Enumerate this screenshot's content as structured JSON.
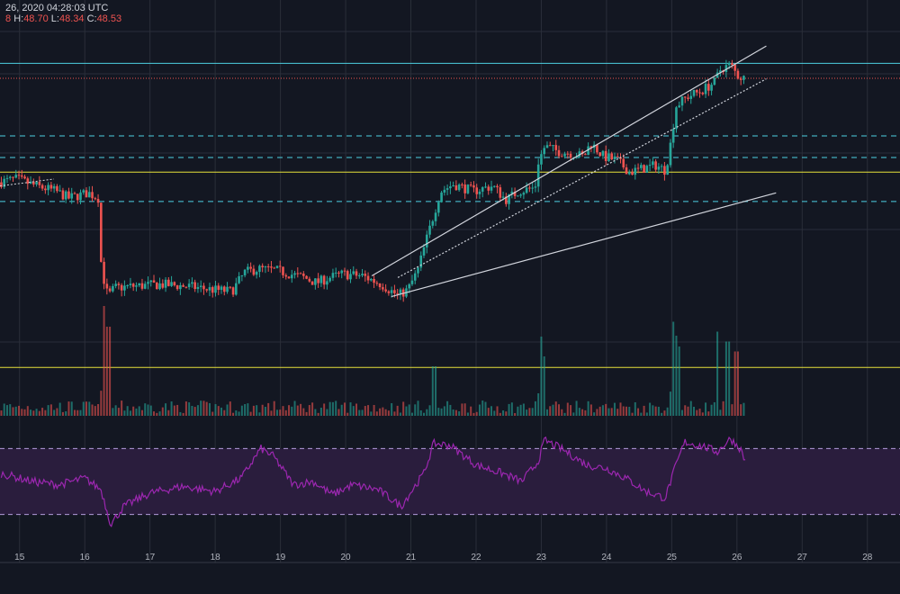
{
  "header": {
    "date_text": "26, 2020 04:28:03 UTC",
    "open_fragment": "8",
    "high_label": "H:",
    "high_value": "48.70",
    "low_label": "L:",
    "low_value": "48.34",
    "close_label": "C:",
    "close_value": "48.53"
  },
  "colors": {
    "background": "#131722",
    "grid": "#2a2e39",
    "up": "#26a69a",
    "down": "#ef5350",
    "cyan_line": "#4dd0e1",
    "yellow_line": "#e6e13a",
    "trend_line": "#d1d4dc",
    "rsi_line": "#9c27b0",
    "rsi_band": "#2a1d3d",
    "price_line": "#ef5350"
  },
  "chart_data": {
    "type": "candlestick",
    "x_axis": {
      "unit": "day",
      "range": [
        14.7,
        28.5
      ],
      "ticks": [
        "15",
        "16",
        "17",
        "18",
        "19",
        "20",
        "21",
        "22",
        "23",
        "24",
        "25",
        "26",
        "27",
        "28"
      ]
    },
    "price_range": [
      29,
      51.5
    ],
    "horizontal_levels": [
      {
        "kind": "solid",
        "color": "cyan",
        "price": 49.4
      },
      {
        "kind": "dotted",
        "color": "red",
        "price": 48.53
      },
      {
        "kind": "dashed",
        "color": "cyan",
        "price": 45.2
      },
      {
        "kind": "dashed",
        "color": "cyan",
        "price": 43.95
      },
      {
        "kind": "solid",
        "color": "yellow",
        "price": 43.1
      },
      {
        "kind": "dashed",
        "color": "cyan",
        "price": 41.4
      },
      {
        "kind": "solid",
        "color": "yellow",
        "price": 31.8
      }
    ],
    "trend_lines": [
      {
        "style": "solid",
        "from": [
          20.4,
          37.1
        ],
        "to": [
          26.45,
          50.4
        ]
      },
      {
        "style": "solid",
        "from": [
          20.7,
          35.9
        ],
        "to": [
          26.6,
          41.9
        ]
      },
      {
        "style": "dotted",
        "from": [
          20.8,
          37.0
        ],
        "to": [
          26.45,
          48.5
        ]
      }
    ],
    "price_anchors": [
      [
        14.7,
        42.5
      ],
      [
        15.0,
        42.7
      ],
      [
        15.3,
        42.3
      ],
      [
        15.6,
        42.0
      ],
      [
        15.8,
        41.6
      ],
      [
        16.1,
        41.9
      ],
      [
        16.25,
        41.6
      ],
      [
        16.3,
        37.5
      ],
      [
        16.4,
        35.9
      ],
      [
        16.5,
        36.4
      ],
      [
        16.8,
        36.5
      ],
      [
        17.2,
        36.6
      ],
      [
        17.6,
        36.5
      ],
      [
        18.0,
        36.3
      ],
      [
        18.3,
        36.2
      ],
      [
        18.5,
        37.3
      ],
      [
        18.7,
        37.5
      ],
      [
        19.0,
        37.4
      ],
      [
        19.2,
        37.2
      ],
      [
        19.4,
        37.0
      ],
      [
        19.6,
        36.7
      ],
      [
        19.8,
        37.0
      ],
      [
        20.0,
        37.2
      ],
      [
        20.3,
        37.1
      ],
      [
        20.6,
        36.6
      ],
      [
        20.85,
        35.95
      ],
      [
        21.0,
        36.3
      ],
      [
        21.15,
        37.4
      ],
      [
        21.3,
        39.4
      ],
      [
        21.5,
        42.0
      ],
      [
        21.7,
        42.4
      ],
      [
        22.0,
        42.0
      ],
      [
        22.3,
        42.3
      ],
      [
        22.5,
        41.5
      ],
      [
        22.7,
        42.0
      ],
      [
        22.95,
        42.2
      ],
      [
        23.0,
        43.7
      ],
      [
        23.1,
        44.6
      ],
      [
        23.3,
        44.3
      ],
      [
        23.5,
        44.2
      ],
      [
        23.7,
        44.0
      ],
      [
        23.8,
        44.8
      ],
      [
        24.0,
        44.0
      ],
      [
        24.2,
        43.8
      ],
      [
        24.4,
        43.1
      ],
      [
        24.6,
        43.3
      ],
      [
        24.8,
        43.5
      ],
      [
        24.95,
        43.2
      ],
      [
        25.05,
        45.2
      ],
      [
        25.1,
        46.9
      ],
      [
        25.3,
        47.5
      ],
      [
        25.5,
        47.8
      ],
      [
        25.7,
        48.3
      ],
      [
        25.8,
        49.1
      ],
      [
        25.95,
        49.3
      ],
      [
        26.05,
        48.7
      ],
      [
        26.15,
        48.53
      ]
    ],
    "rsi": {
      "upper_level": 70,
      "lower_level": 30,
      "range": [
        20,
        80
      ],
      "anchors": [
        [
          14.7,
          55
        ],
        [
          15.2,
          50
        ],
        [
          15.6,
          48
        ],
        [
          16.0,
          52
        ],
        [
          16.25,
          45
        ],
        [
          16.4,
          24
        ],
        [
          16.6,
          35
        ],
        [
          17.0,
          43
        ],
        [
          17.5,
          47
        ],
        [
          18.0,
          44
        ],
        [
          18.4,
          52
        ],
        [
          18.7,
          70
        ],
        [
          18.9,
          65
        ],
        [
          19.2,
          48
        ],
        [
          19.5,
          50
        ],
        [
          19.8,
          42
        ],
        [
          20.1,
          48
        ],
        [
          20.5,
          45
        ],
        [
          20.85,
          35
        ],
        [
          21.2,
          55
        ],
        [
          21.35,
          73
        ],
        [
          21.6,
          72
        ],
        [
          22.0,
          60
        ],
        [
          22.4,
          55
        ],
        [
          22.7,
          50
        ],
        [
          22.95,
          62
        ],
        [
          23.05,
          75
        ],
        [
          23.3,
          70
        ],
        [
          23.7,
          60
        ],
        [
          24.0,
          58
        ],
        [
          24.3,
          52
        ],
        [
          24.6,
          44
        ],
        [
          24.9,
          40
        ],
        [
          25.05,
          58
        ],
        [
          25.2,
          74
        ],
        [
          25.5,
          71
        ],
        [
          25.7,
          68
        ],
        [
          25.9,
          76
        ],
        [
          26.05,
          70
        ],
        [
          26.15,
          60
        ]
      ]
    },
    "volume_spikes": [
      [
        16.3,
        1.0
      ],
      [
        16.35,
        0.9
      ],
      [
        21.35,
        0.5
      ],
      [
        23.0,
        0.8
      ],
      [
        23.05,
        0.6
      ],
      [
        25.05,
        0.95
      ],
      [
        25.1,
        0.7
      ],
      [
        25.7,
        0.85
      ],
      [
        25.85,
        0.75
      ],
      [
        26.0,
        0.65
      ]
    ]
  }
}
